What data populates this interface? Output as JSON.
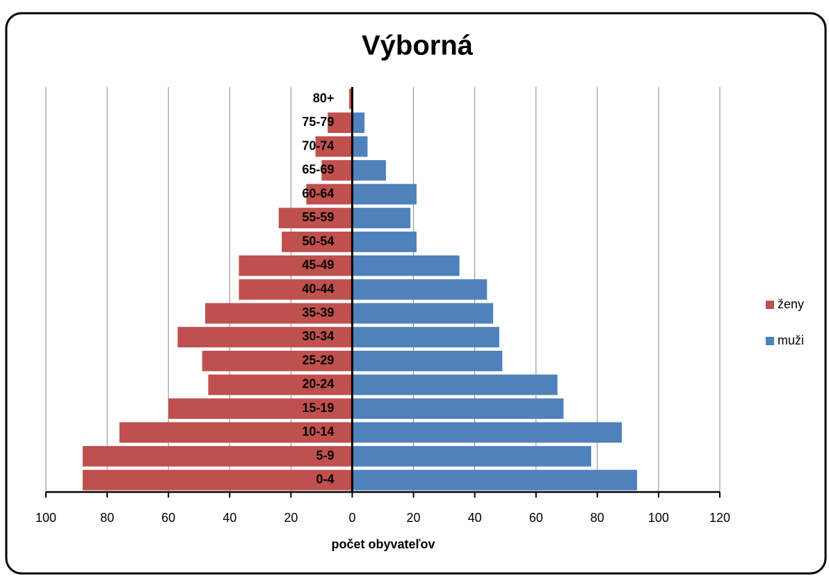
{
  "chart_data": {
    "type": "pyramid",
    "title": "Výborná",
    "x_label": "počet obyvateľov",
    "categories": [
      "0-4",
      "5-9",
      "10-14",
      "15-19",
      "20-24",
      "25-29",
      "30-34",
      "35-39",
      "40-44",
      "45-49",
      "50-54",
      "55-59",
      "60-64",
      "65-69",
      "70-74",
      "75-79",
      "80+"
    ],
    "series": [
      {
        "name": "ženy",
        "color": "#c0504d",
        "values": [
          -88,
          -88,
          -76,
          -60,
          -47,
          -49,
          -57,
          -48,
          -37,
          -37,
          -23,
          -24,
          -15,
          -10,
          -12,
          -8,
          -1
        ]
      },
      {
        "name": "muži",
        "color": "#4f81bd",
        "values": [
          93,
          78,
          88,
          69,
          67,
          49,
          48,
          46,
          44,
          35,
          21,
          19,
          21,
          11,
          5,
          4,
          0
        ]
      }
    ],
    "xlim": [
      -100,
      120
    ],
    "xticks": [
      {
        "value": -100,
        "label": "100"
      },
      {
        "value": -80,
        "label": "80"
      },
      {
        "value": -60,
        "label": "60"
      },
      {
        "value": -40,
        "label": "40"
      },
      {
        "value": -20,
        "label": "20"
      },
      0,
      20,
      40,
      60,
      80,
      100,
      120
    ],
    "grid": true,
    "legend": "right"
  }
}
